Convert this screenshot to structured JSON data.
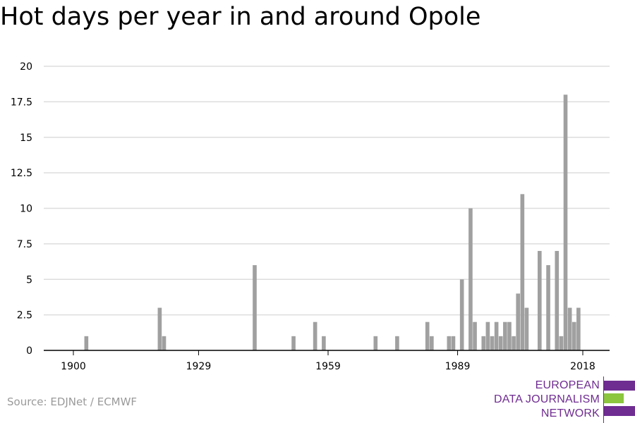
{
  "title": "Hot days per year in and around Opole",
  "source": "Source: EDJNet / ECMWF",
  "logo": {
    "lines": [
      "EUROPEAN",
      "DATA JOURNALISM",
      "NETWORK"
    ],
    "colors": {
      "purple": "#6f2c91",
      "green": "#8cc63f"
    }
  },
  "colors": {
    "bar": "#a0a0a0",
    "grid": "#dddddd",
    "axis": "#000000"
  },
  "chart_data": {
    "type": "bar",
    "title": "Hot days per year in and around Opole",
    "xlabel": "",
    "ylabel": "",
    "xlim": [
      1900,
      2018
    ],
    "ylim": [
      0,
      20
    ],
    "xticks": [
      1900,
      1929,
      1959,
      1989,
      2018
    ],
    "yticks": [
      0,
      2.5,
      5,
      7.5,
      10,
      12.5,
      15,
      17.5,
      20
    ],
    "ytick_labels": [
      "0",
      "2.5",
      "5",
      "7.5",
      "10",
      "12.5",
      "15",
      "17.5",
      "20"
    ],
    "grid": true,
    "x": [
      1903,
      1920,
      1921,
      1942,
      1951,
      1956,
      1958,
      1970,
      1975,
      1982,
      1983,
      1987,
      1988,
      1990,
      1992,
      1993,
      1995,
      1996,
      1997,
      1998,
      1999,
      2000,
      2001,
      2002,
      2003,
      2004,
      2005,
      2006,
      2007,
      2008,
      2010,
      2012,
      2013,
      2014,
      2015,
      2016,
      2017,
      2018
    ],
    "values": [
      1,
      3,
      1,
      6,
      1,
      2,
      1,
      1,
      1,
      2,
      1,
      1,
      1,
      5,
      10,
      2,
      1,
      2,
      1,
      2,
      1,
      2,
      2,
      1,
      4,
      11,
      3,
      0,
      0,
      7,
      6,
      7,
      1,
      18,
      3,
      2,
      3,
      0
    ]
  }
}
